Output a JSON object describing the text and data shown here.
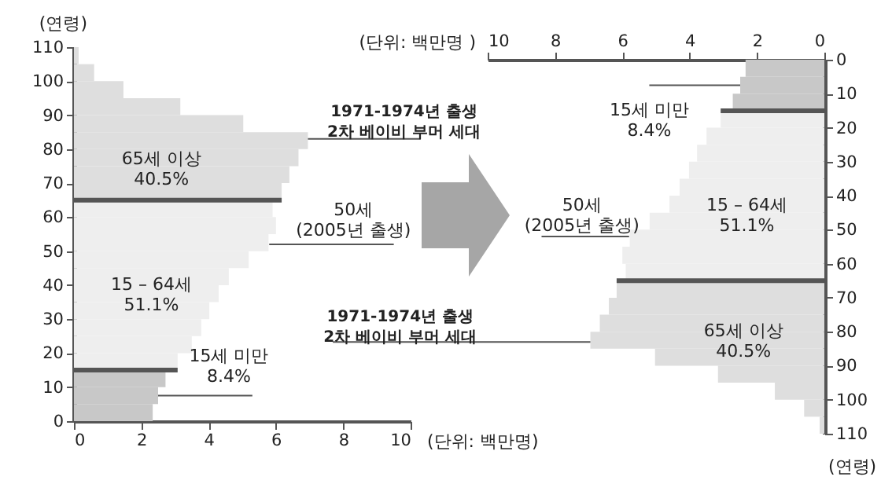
{
  "chart_data": [
    {
      "type": "histogram",
      "orientation": "horizontal",
      "xlabel": "(단위: 백만명)",
      "ylabel": "(연령)",
      "bins": [
        0,
        5,
        10,
        15,
        20,
        25,
        30,
        35,
        40,
        45,
        50,
        55,
        60,
        65,
        70,
        75,
        80,
        85,
        90,
        95,
        100,
        105,
        110
      ],
      "values": [
        2.34,
        2.5,
        2.72,
        3.08,
        3.5,
        3.78,
        4.02,
        4.3,
        4.6,
        5.19,
        5.78,
        6.0,
        5.9,
        6.17,
        6.4,
        6.67,
        6.95,
        5.03,
        3.16,
        1.47,
        0.6,
        0.14
      ],
      "colors": [
        "#c8c8c8",
        "#c8c8c8",
        "#c8c8c8",
        "#eeeeee",
        "#eeeeee",
        "#eeeeee",
        "#eeeeee",
        "#eeeeee",
        "#eeeeee",
        "#eeeeee",
        "#eeeeee",
        "#eeeeee",
        "#eeeeee",
        "#dedede",
        "#dedede",
        "#dedede",
        "#dedede",
        "#dedede",
        "#dedede",
        "#dedede",
        "#dedede",
        "#dedede"
      ],
      "xlim": [
        0,
        10
      ],
      "xticks": [
        0,
        2,
        4,
        6,
        8,
        10
      ],
      "ylim": [
        0,
        110
      ],
      "yticks": [
        0,
        10,
        20,
        30,
        40,
        50,
        60,
        70,
        80,
        90,
        100,
        110
      ],
      "ref_lines": [
        {
          "axis": "y",
          "value": 15,
          "color": "#555555"
        },
        {
          "axis": "y",
          "value": 65,
          "color": "#555555"
        }
      ],
      "annotations": [
        "65세 이상\n40.5%",
        "15 – 64세\n51.1%",
        {
          "text": "1971-1974년 출생\n2차 베이비 부머 세대",
          "x": 6.95,
          "y": 83
        },
        {
          "text": "50세\n(2005년 출생)",
          "x": 5.8,
          "y": 52
        },
        {
          "text": "15세 미만\n8.4%",
          "x": 2.5,
          "y": 7.5
        }
      ]
    },
    {
      "type": "histogram",
      "orientation": "horizontal",
      "xlabel": "(단위: 백만명 )",
      "ylabel": "(연령)",
      "bins": [
        0,
        5,
        10,
        15,
        20,
        25,
        30,
        35,
        40,
        45,
        50,
        55,
        60,
        65,
        70,
        75,
        80,
        85,
        90,
        95,
        100,
        105,
        110
      ],
      "values": [
        2.34,
        2.5,
        2.72,
        3.08,
        3.5,
        3.78,
        4.02,
        4.3,
        4.6,
        5.19,
        5.78,
        6.0,
        5.9,
        6.17,
        6.4,
        6.67,
        6.95,
        5.03,
        3.16,
        1.47,
        0.6,
        0.14
      ],
      "colors": [
        "#c8c8c8",
        "#c8c8c8",
        "#c8c8c8",
        "#eeeeee",
        "#eeeeee",
        "#eeeeee",
        "#eeeeee",
        "#eeeeee",
        "#eeeeee",
        "#eeeeee",
        "#eeeeee",
        "#eeeeee",
        "#eeeeee",
        "#dedede",
        "#dedede",
        "#dedede",
        "#dedede",
        "#dedede",
        "#dedede",
        "#dedede",
        "#dedede",
        "#dedede"
      ],
      "xlim": [
        10,
        0
      ],
      "xticks": [
        10,
        8,
        6,
        4,
        2,
        0
      ],
      "ylim": [
        110,
        0
      ],
      "yticks": [
        0,
        10,
        20,
        30,
        40,
        50,
        60,
        70,
        80,
        90,
        100,
        110
      ],
      "ref_lines": [
        {
          "axis": "y",
          "value": 15,
          "color": "#555555"
        },
        {
          "axis": "y",
          "value": 65,
          "color": "#555555"
        }
      ],
      "annotations": [
        "65세 이상\n40.5%",
        "15 – 64세\n51.1%",
        {
          "text": "1971-1974년 출생\n2차 베이비 부머 세대",
          "x": 6.95,
          "y": 83
        },
        {
          "text": "50세\n(2005년 출생)",
          "x": 5.8,
          "y": 52
        },
        {
          "text": "15세 미만\n8.4%",
          "x": 2.5,
          "y": 7.5
        }
      ]
    }
  ]
}
